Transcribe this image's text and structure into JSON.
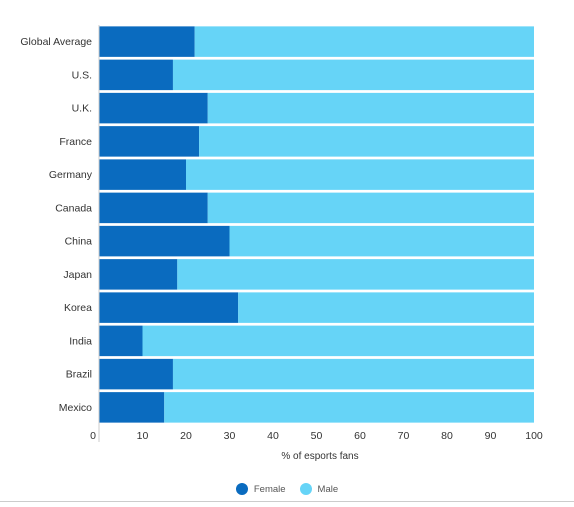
{
  "chart_data": {
    "type": "bar",
    "orientation": "horizontal",
    "stacked": true,
    "categories": [
      "Global Average",
      "U.S.",
      "U.K.",
      "France",
      "Germany",
      "Canada",
      "China",
      "Japan",
      "Korea",
      "India",
      "Brazil",
      "Mexico"
    ],
    "series": [
      {
        "name": "Female",
        "color": "#0a6bbf",
        "values": [
          22,
          17,
          25,
          23,
          20,
          25,
          30,
          18,
          32,
          10,
          17,
          15
        ]
      },
      {
        "name": "Male",
        "color": "#66d4f7",
        "values": [
          78,
          83,
          75,
          77,
          80,
          75,
          70,
          82,
          68,
          90,
          83,
          85
        ]
      }
    ],
    "xlabel": "% of esports fans",
    "xticks": [
      "0",
      "10",
      "20",
      "30",
      "40",
      "50",
      "60",
      "70",
      "80",
      "90",
      "100"
    ],
    "xlim": [
      0,
      100
    ],
    "legend_position": "bottom"
  }
}
